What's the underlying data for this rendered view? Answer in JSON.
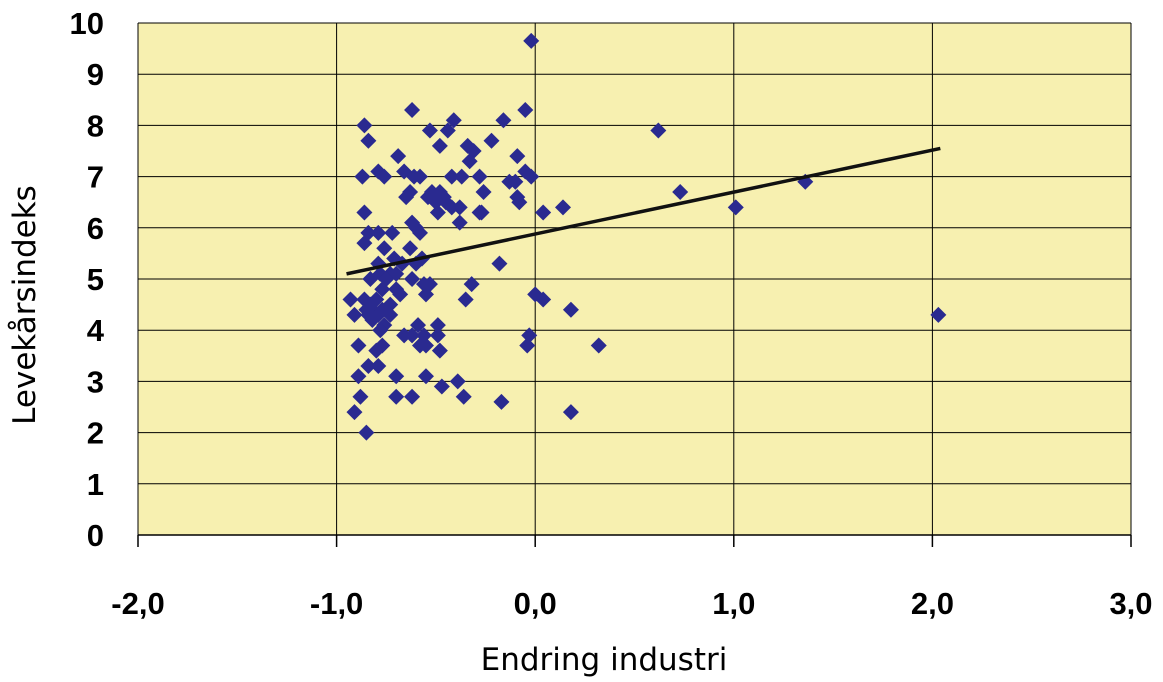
{
  "chart_data": {
    "type": "scatter",
    "title": "",
    "xlabel": "Endring industri",
    "ylabel": "Levekårsindeks",
    "xlim": [
      -2.0,
      3.0
    ],
    "ylim": [
      0,
      10
    ],
    "x_ticks": [
      -2.0,
      -1.0,
      0.0,
      1.0,
      2.0,
      3.0
    ],
    "x_tick_labels": [
      "-2,0",
      "-1,0",
      "0,0",
      "1,0",
      "2,0",
      "3,0"
    ],
    "y_ticks": [
      0,
      1,
      2,
      3,
      4,
      5,
      6,
      7,
      8,
      9,
      10
    ],
    "y_tick_labels": [
      "0",
      "1",
      "2",
      "3",
      "4",
      "5",
      "6",
      "7",
      "8",
      "9",
      "10"
    ],
    "grid": true,
    "legend": "none",
    "colors": {
      "plot_background": "#f7f0b0",
      "marker": "#2a2a90",
      "trendline": "#111111",
      "gridline": "#000000"
    },
    "trendline": {
      "x": [
        -0.95,
        2.04
      ],
      "y": [
        5.1,
        7.55
      ]
    },
    "points": [
      {
        "x": -0.02,
        "y": 9.65
      },
      {
        "x": -0.62,
        "y": 8.3
      },
      {
        "x": -0.05,
        "y": 8.3
      },
      {
        "x": -0.86,
        "y": 8.0
      },
      {
        "x": -0.41,
        "y": 8.1
      },
      {
        "x": -0.16,
        "y": 8.1
      },
      {
        "x": -0.53,
        "y": 7.9
      },
      {
        "x": -0.44,
        "y": 7.9
      },
      {
        "x": 0.62,
        "y": 7.9
      },
      {
        "x": -0.84,
        "y": 7.7
      },
      {
        "x": -0.22,
        "y": 7.7
      },
      {
        "x": -0.48,
        "y": 7.6
      },
      {
        "x": -0.34,
        "y": 7.6
      },
      {
        "x": -0.31,
        "y": 7.5
      },
      {
        "x": -0.69,
        "y": 7.4
      },
      {
        "x": -0.09,
        "y": 7.4
      },
      {
        "x": -0.33,
        "y": 7.3
      },
      {
        "x": -0.05,
        "y": 7.1
      },
      {
        "x": -0.79,
        "y": 7.1
      },
      {
        "x": -0.66,
        "y": 7.1
      },
      {
        "x": -0.87,
        "y": 7.0
      },
      {
        "x": -0.76,
        "y": 7.0
      },
      {
        "x": -0.61,
        "y": 7.0
      },
      {
        "x": -0.58,
        "y": 7.0
      },
      {
        "x": -0.42,
        "y": 7.0
      },
      {
        "x": -0.37,
        "y": 7.0
      },
      {
        "x": -0.28,
        "y": 7.0
      },
      {
        "x": -0.02,
        "y": 7.0
      },
      {
        "x": -0.13,
        "y": 6.9
      },
      {
        "x": -0.1,
        "y": 6.9
      },
      {
        "x": 1.36,
        "y": 6.9
      },
      {
        "x": -0.52,
        "y": 6.7
      },
      {
        "x": -0.48,
        "y": 6.7
      },
      {
        "x": -0.26,
        "y": 6.7
      },
      {
        "x": -0.63,
        "y": 6.7
      },
      {
        "x": 0.73,
        "y": 6.7
      },
      {
        "x": -0.65,
        "y": 6.6
      },
      {
        "x": -0.54,
        "y": 6.6
      },
      {
        "x": -0.46,
        "y": 6.6
      },
      {
        "x": -0.09,
        "y": 6.6
      },
      {
        "x": -0.5,
        "y": 6.5
      },
      {
        "x": -0.45,
        "y": 6.5
      },
      {
        "x": -0.08,
        "y": 6.5
      },
      {
        "x": -0.42,
        "y": 6.4
      },
      {
        "x": -0.38,
        "y": 6.4
      },
      {
        "x": 1.01,
        "y": 6.4
      },
      {
        "x": 0.14,
        "y": 6.4
      },
      {
        "x": -0.49,
        "y": 6.3
      },
      {
        "x": -0.28,
        "y": 6.3
      },
      {
        "x": -0.27,
        "y": 6.3
      },
      {
        "x": 0.04,
        "y": 6.3
      },
      {
        "x": -0.86,
        "y": 6.3
      },
      {
        "x": -0.62,
        "y": 6.1
      },
      {
        "x": -0.38,
        "y": 6.1
      },
      {
        "x": -0.6,
        "y": 6.0
      },
      {
        "x": -0.84,
        "y": 5.9
      },
      {
        "x": -0.79,
        "y": 5.9
      },
      {
        "x": -0.72,
        "y": 5.9
      },
      {
        "x": -0.58,
        "y": 5.9
      },
      {
        "x": -0.86,
        "y": 5.7
      },
      {
        "x": -0.76,
        "y": 5.6
      },
      {
        "x": -0.63,
        "y": 5.6
      },
      {
        "x": -0.71,
        "y": 5.4
      },
      {
        "x": -0.57,
        "y": 5.4
      },
      {
        "x": -0.79,
        "y": 5.3
      },
      {
        "x": -0.67,
        "y": 5.3
      },
      {
        "x": -0.6,
        "y": 5.3
      },
      {
        "x": -0.18,
        "y": 5.3
      },
      {
        "x": -0.73,
        "y": 5.1
      },
      {
        "x": -0.78,
        "y": 5.1
      },
      {
        "x": -0.7,
        "y": 5.1
      },
      {
        "x": -0.83,
        "y": 5.0
      },
      {
        "x": -0.75,
        "y": 5.0
      },
      {
        "x": -0.62,
        "y": 5.0
      },
      {
        "x": -0.56,
        "y": 4.9
      },
      {
        "x": -0.53,
        "y": 4.9
      },
      {
        "x": -0.32,
        "y": 4.9
      },
      {
        "x": -0.77,
        "y": 4.8
      },
      {
        "x": -0.7,
        "y": 4.8
      },
      {
        "x": -0.55,
        "y": 4.7
      },
      {
        "x": -0.68,
        "y": 4.7
      },
      {
        "x": -0.93,
        "y": 4.6
      },
      {
        "x": -0.86,
        "y": 4.6
      },
      {
        "x": -0.8,
        "y": 4.6
      },
      {
        "x": 0.0,
        "y": 4.7
      },
      {
        "x": 0.04,
        "y": 4.6
      },
      {
        "x": -0.35,
        "y": 4.6
      },
      {
        "x": -0.83,
        "y": 4.5
      },
      {
        "x": -0.73,
        "y": 4.5
      },
      {
        "x": -0.85,
        "y": 4.4
      },
      {
        "x": -0.82,
        "y": 4.4
      },
      {
        "x": -0.77,
        "y": 4.4
      },
      {
        "x": 0.18,
        "y": 4.4
      },
      {
        "x": -0.91,
        "y": 4.3
      },
      {
        "x": -0.84,
        "y": 4.3
      },
      {
        "x": -0.79,
        "y": 4.3
      },
      {
        "x": -0.73,
        "y": 4.3
      },
      {
        "x": 2.03,
        "y": 4.3
      },
      {
        "x": -0.82,
        "y": 4.2
      },
      {
        "x": -0.76,
        "y": 4.1
      },
      {
        "x": -0.59,
        "y": 4.1
      },
      {
        "x": -0.49,
        "y": 4.1
      },
      {
        "x": -0.78,
        "y": 4.0
      },
      {
        "x": -0.66,
        "y": 3.9
      },
      {
        "x": -0.62,
        "y": 3.9
      },
      {
        "x": -0.56,
        "y": 3.9
      },
      {
        "x": -0.49,
        "y": 3.9
      },
      {
        "x": -0.03,
        "y": 3.9
      },
      {
        "x": -0.89,
        "y": 3.7
      },
      {
        "x": -0.77,
        "y": 3.7
      },
      {
        "x": -0.58,
        "y": 3.7
      },
      {
        "x": -0.55,
        "y": 3.7
      },
      {
        "x": -0.04,
        "y": 3.7
      },
      {
        "x": 0.32,
        "y": 3.7
      },
      {
        "x": -0.8,
        "y": 3.6
      },
      {
        "x": -0.48,
        "y": 3.6
      },
      {
        "x": -0.84,
        "y": 3.3
      },
      {
        "x": -0.79,
        "y": 3.3
      },
      {
        "x": -0.89,
        "y": 3.1
      },
      {
        "x": -0.7,
        "y": 3.1
      },
      {
        "x": -0.55,
        "y": 3.1
      },
      {
        "x": -0.39,
        "y": 3.0
      },
      {
        "x": -0.47,
        "y": 2.9
      },
      {
        "x": -0.88,
        "y": 2.7
      },
      {
        "x": -0.7,
        "y": 2.7
      },
      {
        "x": -0.62,
        "y": 2.7
      },
      {
        "x": -0.36,
        "y": 2.7
      },
      {
        "x": -0.17,
        "y": 2.6
      },
      {
        "x": -0.91,
        "y": 2.4
      },
      {
        "x": 0.18,
        "y": 2.4
      },
      {
        "x": -0.85,
        "y": 2.0
      }
    ]
  }
}
